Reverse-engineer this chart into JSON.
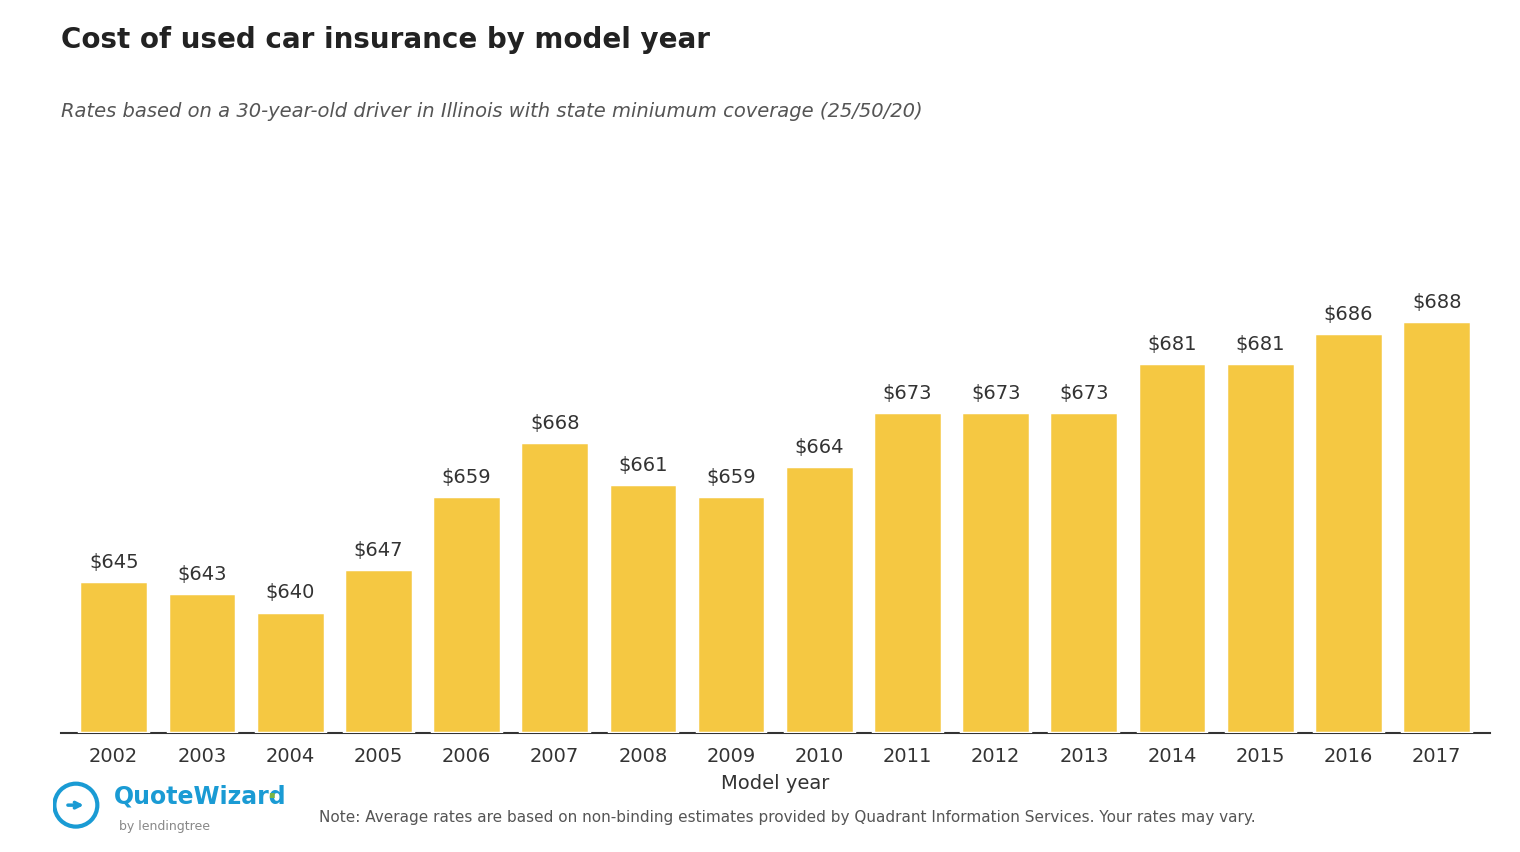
{
  "title": "Cost of used car insurance by model year",
  "subtitle": "Rates based on a 30-year-old driver in Illinois with state miniumum coverage (25/50/20)",
  "xlabel": "Model year",
  "note": "Note: Average rates are based on non-binding estimates provided by Quadrant Information Services. Your rates may vary.",
  "years": [
    2002,
    2003,
    2004,
    2005,
    2006,
    2007,
    2008,
    2009,
    2010,
    2011,
    2012,
    2013,
    2014,
    2015,
    2016,
    2017
  ],
  "values": [
    645,
    643,
    640,
    647,
    659,
    668,
    661,
    659,
    664,
    673,
    673,
    673,
    681,
    681,
    686,
    688
  ],
  "bar_color": "#F5C842",
  "bar_edge_color": "white",
  "background_color": "#ffffff",
  "title_fontsize": 20,
  "subtitle_fontsize": 14,
  "label_fontsize": 14,
  "tick_fontsize": 14,
  "note_fontsize": 11,
  "ylim_min": 620,
  "ylim_max": 710,
  "title_color": "#222222",
  "subtitle_color": "#555555",
  "tick_color": "#333333",
  "label_color": "#333333",
  "bar_label_color": "#333333",
  "qw_color": "#1A9BD4",
  "qw_green": "#7AB648"
}
